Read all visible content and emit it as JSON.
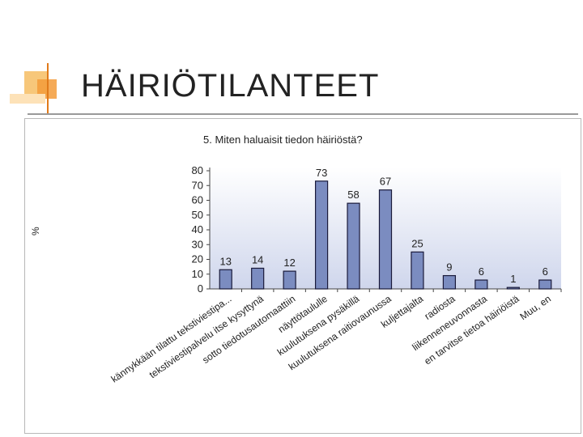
{
  "slide": {
    "title": "HÄIRIÖTILANTEET"
  },
  "colors": {
    "bar_fill": "#7b8cc0",
    "bar_stroke": "#1a1a3a",
    "plot_gradient_top": "#ffffff",
    "plot_gradient_bottom": "#cfd6ec",
    "accent_orange": "#f39b3a"
  },
  "chart_data": {
    "type": "bar",
    "title": "5. Miten haluaisit tiedon häiriöstä?",
    "ylabel": "%",
    "xlabel": "",
    "ylim": [
      0,
      80
    ],
    "yticks": [
      0,
      10,
      20,
      30,
      40,
      50,
      60,
      70,
      80
    ],
    "grid": false,
    "categories": [
      "kännykkään tilattu tekstiviestipa...",
      "tekstiviestipalvelu itse kysyttynä",
      "sotto tiedotusautomaattiin",
      "näyttötaululle",
      "kuulutuksena pysäkillä",
      "kuulutuksena raitiovaunussa",
      "kuljettajalta",
      "radiosta",
      "liikenneneuvonnasta",
      "en tarvitse tietoa häiriöistä",
      "Muu, en"
    ],
    "values": [
      13,
      14,
      12,
      73,
      58,
      67,
      25,
      9,
      6,
      1,
      6
    ]
  }
}
